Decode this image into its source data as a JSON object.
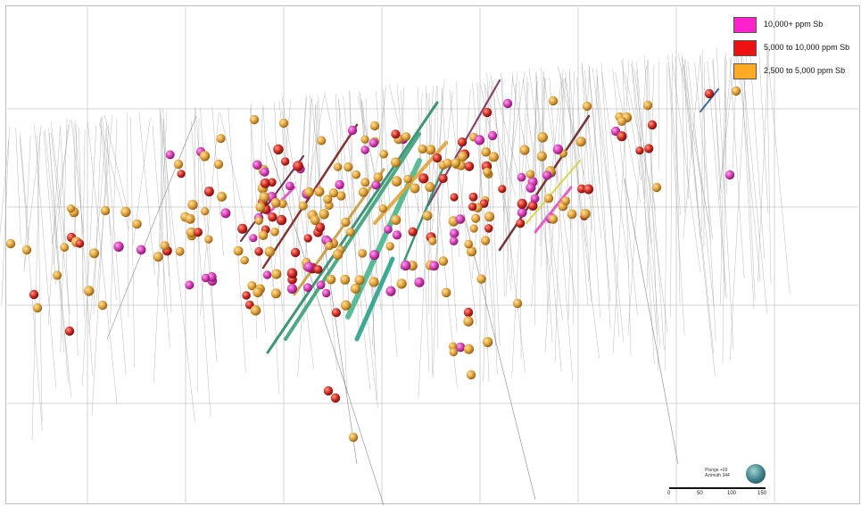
{
  "legend": {
    "items": [
      {
        "label": "10,000+ ppm Sb",
        "color": "#ff22cc"
      },
      {
        "label": "5,000 to 10,000 ppm Sb",
        "color": "#ee1111"
      },
      {
        "label": "2,500 to 5,000 ppm Sb",
        "color": "#ffaa22"
      }
    ]
  },
  "view_info": {
    "plunge": "Plunge +03",
    "azimuth": "Azimuth 344"
  },
  "scale_bar": {
    "ticks": [
      "0",
      "50",
      "100",
      "150"
    ]
  },
  "colors": {
    "high": "#e24dc4",
    "mid": "#d8342c",
    "low": "#e0a53a",
    "drill_trace": "#9a9a9a",
    "grid": "#c8c8c8"
  }
}
